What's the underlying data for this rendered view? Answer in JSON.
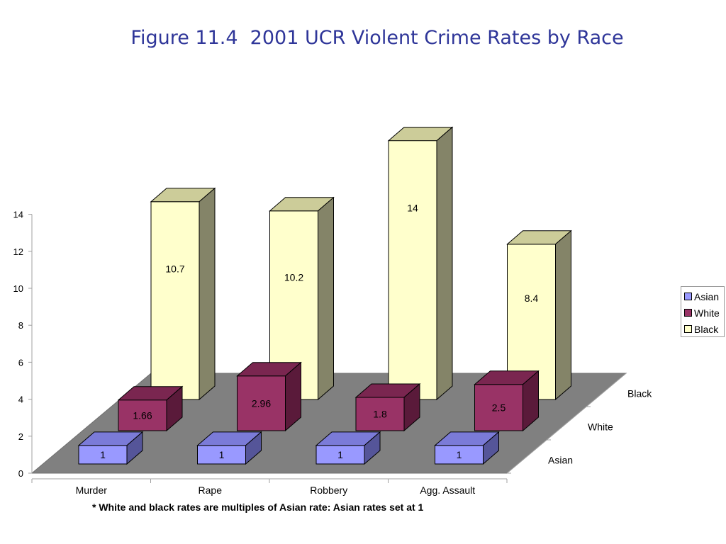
{
  "title": "Figure 11.4  2001 UCR Violent Crime Rates by Race",
  "footnote": "* White and black rates are multiples of Asian rate: Asian rates set at 1",
  "colors": {
    "asian_front": "#9999ff",
    "asian_top": "#7b7bd8",
    "asian_side": "#555599",
    "white_front": "#993366",
    "white_top": "#7a2650",
    "white_side": "#5a1a3a",
    "black_front": "#ffffcc",
    "black_top": "#cccc99",
    "black_side": "#848468",
    "floor": "#808080"
  },
  "chart_data": {
    "type": "bar",
    "variant": "3d-column",
    "categories": [
      "Murder",
      "Rape",
      "Robbery",
      "Agg. Assault"
    ],
    "series": [
      {
        "name": "Asian",
        "values": [
          1,
          1,
          1,
          1
        ]
      },
      {
        "name": "White",
        "values": [
          1.66,
          2.96,
          1.8,
          2.5
        ]
      },
      {
        "name": "Black",
        "values": [
          10.7,
          10.2,
          14,
          8.4
        ]
      }
    ],
    "depth_labels": [
      "Asian",
      "White",
      "Black"
    ],
    "yticks": [
      0,
      2,
      4,
      6,
      8,
      10,
      12,
      14
    ],
    "ylim": [
      0,
      14
    ],
    "legend": "right"
  }
}
